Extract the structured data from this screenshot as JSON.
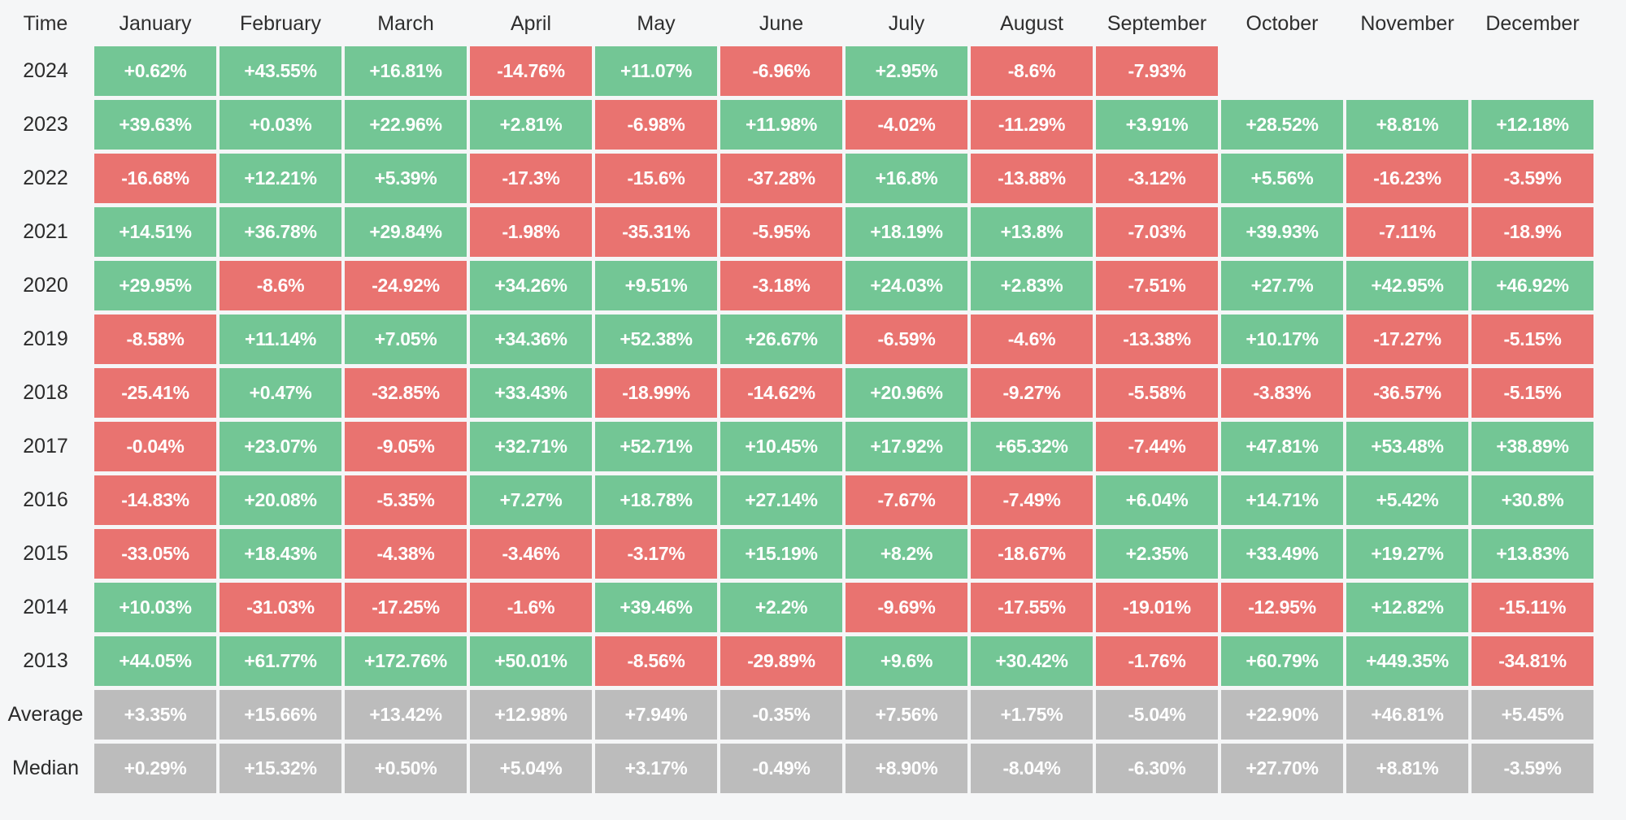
{
  "chart_data": {
    "type": "heatmap",
    "corner_label": "Time",
    "unit": "percent_monthly_return",
    "colors": {
      "positive": "#73c695",
      "negative": "#e97370",
      "stat": "#bcbcbc",
      "background": "#f5f6f7",
      "header_text": "#2e2e2e",
      "cell_text": "#ffffff"
    },
    "columns": [
      "January",
      "February",
      "March",
      "April",
      "May",
      "June",
      "July",
      "August",
      "September",
      "October",
      "November",
      "December"
    ],
    "rows": [
      {
        "label": "2024",
        "type": "year",
        "values": [
          "+0.62%",
          "+43.55%",
          "+16.81%",
          "-14.76%",
          "+11.07%",
          "-6.96%",
          "+2.95%",
          "-8.6%",
          "-7.93%",
          "",
          "",
          ""
        ]
      },
      {
        "label": "2023",
        "type": "year",
        "values": [
          "+39.63%",
          "+0.03%",
          "+22.96%",
          "+2.81%",
          "-6.98%",
          "+11.98%",
          "-4.02%",
          "-11.29%",
          "+3.91%",
          "+28.52%",
          "+8.81%",
          "+12.18%"
        ]
      },
      {
        "label": "2022",
        "type": "year",
        "values": [
          "-16.68%",
          "+12.21%",
          "+5.39%",
          "-17.3%",
          "-15.6%",
          "-37.28%",
          "+16.8%",
          "-13.88%",
          "-3.12%",
          "+5.56%",
          "-16.23%",
          "-3.59%"
        ]
      },
      {
        "label": "2021",
        "type": "year",
        "values": [
          "+14.51%",
          "+36.78%",
          "+29.84%",
          "-1.98%",
          "-35.31%",
          "-5.95%",
          "+18.19%",
          "+13.8%",
          "-7.03%",
          "+39.93%",
          "-7.11%",
          "-18.9%"
        ]
      },
      {
        "label": "2020",
        "type": "year",
        "values": [
          "+29.95%",
          "-8.6%",
          "-24.92%",
          "+34.26%",
          "+9.51%",
          "-3.18%",
          "+24.03%",
          "+2.83%",
          "-7.51%",
          "+27.7%",
          "+42.95%",
          "+46.92%"
        ]
      },
      {
        "label": "2019",
        "type": "year",
        "values": [
          "-8.58%",
          "+11.14%",
          "+7.05%",
          "+34.36%",
          "+52.38%",
          "+26.67%",
          "-6.59%",
          "-4.6%",
          "-13.38%",
          "+10.17%",
          "-17.27%",
          "-5.15%"
        ]
      },
      {
        "label": "2018",
        "type": "year",
        "values": [
          "-25.41%",
          "+0.47%",
          "-32.85%",
          "+33.43%",
          "-18.99%",
          "-14.62%",
          "+20.96%",
          "-9.27%",
          "-5.58%",
          "-3.83%",
          "-36.57%",
          "-5.15%"
        ]
      },
      {
        "label": "2017",
        "type": "year",
        "values": [
          "-0.04%",
          "+23.07%",
          "-9.05%",
          "+32.71%",
          "+52.71%",
          "+10.45%",
          "+17.92%",
          "+65.32%",
          "-7.44%",
          "+47.81%",
          "+53.48%",
          "+38.89%"
        ]
      },
      {
        "label": "2016",
        "type": "year",
        "values": [
          "-14.83%",
          "+20.08%",
          "-5.35%",
          "+7.27%",
          "+18.78%",
          "+27.14%",
          "-7.67%",
          "-7.49%",
          "+6.04%",
          "+14.71%",
          "+5.42%",
          "+30.8%"
        ]
      },
      {
        "label": "2015",
        "type": "year",
        "values": [
          "-33.05%",
          "+18.43%",
          "-4.38%",
          "-3.46%",
          "-3.17%",
          "+15.19%",
          "+8.2%",
          "-18.67%",
          "+2.35%",
          "+33.49%",
          "+19.27%",
          "+13.83%"
        ]
      },
      {
        "label": "2014",
        "type": "year",
        "values": [
          "+10.03%",
          "-31.03%",
          "-17.25%",
          "-1.6%",
          "+39.46%",
          "+2.2%",
          "-9.69%",
          "-17.55%",
          "-19.01%",
          "-12.95%",
          "+12.82%",
          "-15.11%"
        ]
      },
      {
        "label": "2013",
        "type": "year",
        "values": [
          "+44.05%",
          "+61.77%",
          "+172.76%",
          "+50.01%",
          "-8.56%",
          "-29.89%",
          "+9.6%",
          "+30.42%",
          "-1.76%",
          "+60.79%",
          "+449.35%",
          "-34.81%"
        ]
      },
      {
        "label": "Average",
        "type": "stat",
        "values": [
          "+3.35%",
          "+15.66%",
          "+13.42%",
          "+12.98%",
          "+7.94%",
          "-0.35%",
          "+7.56%",
          "+1.75%",
          "-5.04%",
          "+22.90%",
          "+46.81%",
          "+5.45%"
        ]
      },
      {
        "label": "Median",
        "type": "stat",
        "values": [
          "+0.29%",
          "+15.32%",
          "+0.50%",
          "+5.04%",
          "+3.17%",
          "-0.49%",
          "+8.90%",
          "-8.04%",
          "-6.30%",
          "+27.70%",
          "+8.81%",
          "-3.59%"
        ]
      }
    ]
  }
}
